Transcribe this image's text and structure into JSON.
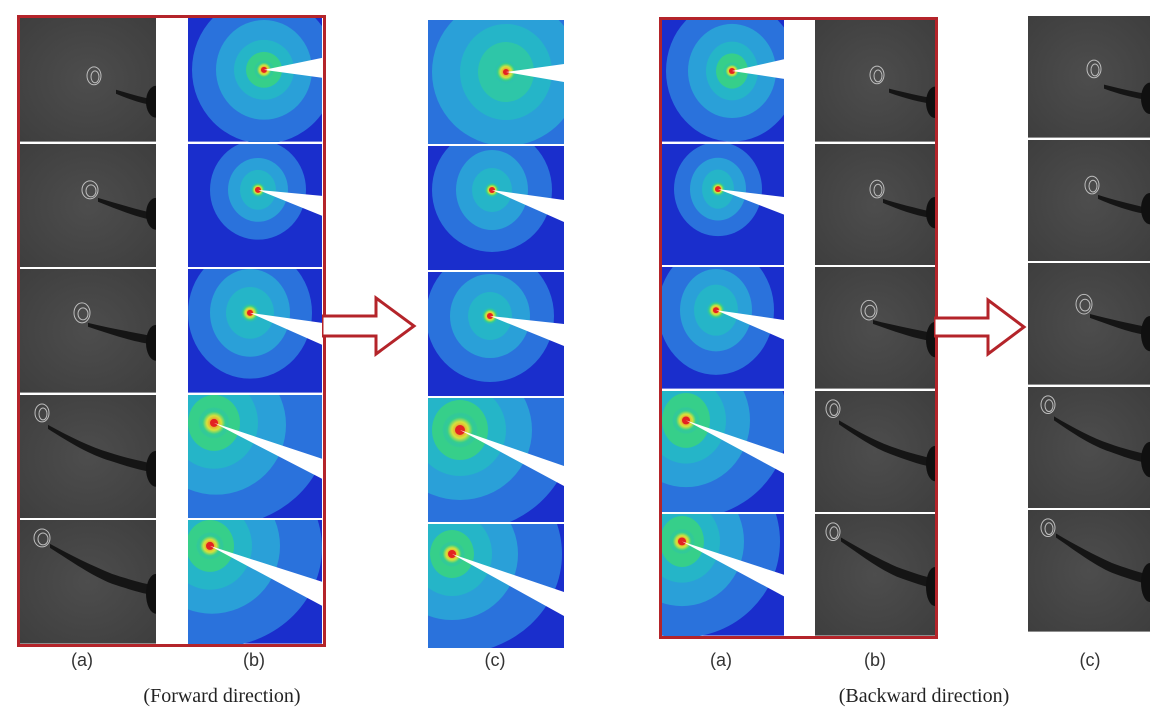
{
  "figure": {
    "forward": {
      "caption": "(Forward direction)",
      "labels": {
        "a": "(a)",
        "b": "(b)",
        "c": "(c)"
      }
    },
    "backward": {
      "caption": "(Backward direction)",
      "labels": {
        "a": "(a)",
        "b": "(b)",
        "c": "(c)"
      }
    }
  },
  "colors": {
    "frame": "#b4242a",
    "ct_background": "#474747",
    "fea_blue_dark": "#1a2ecc",
    "fea_blue": "#2a72dc",
    "fea_cyan": "#25b5c8",
    "fea_green": "#36cf8a",
    "fea_yellow": "#d8e23a",
    "fea_red": "#e32222"
  }
}
